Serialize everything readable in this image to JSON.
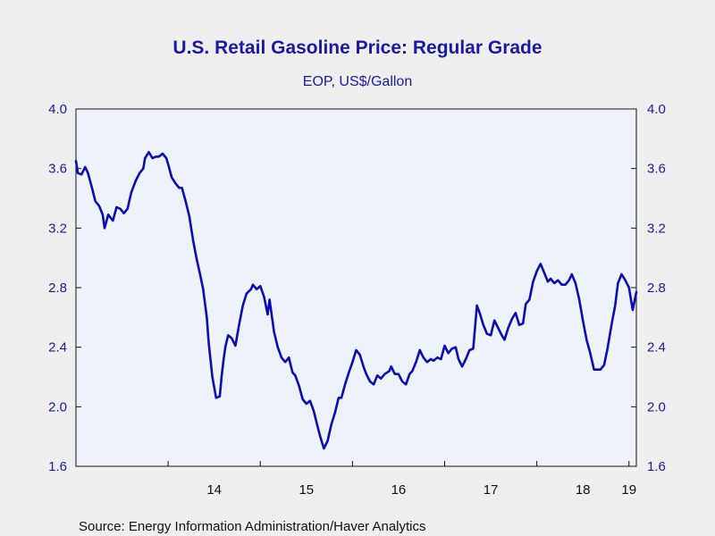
{
  "chart_data": {
    "type": "line",
    "title": "U.S. Retail Gasoline Price: Regular Grade",
    "subtitle": "EOP, US$/Gallon",
    "source": "Source:  Energy Information Administration/Haver Analytics",
    "ylim": [
      1.6,
      4.0
    ],
    "yticks": [
      "4.0",
      "3.6",
      "3.2",
      "2.8",
      "2.4",
      "2.0",
      "1.6"
    ],
    "xlim": [
      2013.0,
      2019.08
    ],
    "x_tick_labels": [
      {
        "label": "14",
        "x": 2014.5
      },
      {
        "label": "15",
        "x": 2015.5
      },
      {
        "label": "16",
        "x": 2016.5
      },
      {
        "label": "17",
        "x": 2017.5
      },
      {
        "label": "18",
        "x": 2018.5
      },
      {
        "label": "19",
        "x": 2019.0
      }
    ],
    "year_boundaries": [
      2014,
      2015,
      2016,
      2017,
      2018,
      2019
    ],
    "grid": false,
    "line_color": "#0c0cb4",
    "plot_background": "#eef3fb",
    "axis_color": "#111111",
    "series": [
      {
        "values": [
          [
            2013.0,
            3.65
          ],
          [
            2013.02,
            3.57
          ],
          [
            2013.06,
            3.56
          ],
          [
            2013.1,
            3.61
          ],
          [
            2013.13,
            3.57
          ],
          [
            2013.17,
            3.48
          ],
          [
            2013.21,
            3.38
          ],
          [
            2013.25,
            3.35
          ],
          [
            2013.29,
            3.29
          ],
          [
            2013.31,
            3.2
          ],
          [
            2013.35,
            3.29
          ],
          [
            2013.4,
            3.25
          ],
          [
            2013.44,
            3.34
          ],
          [
            2013.48,
            3.33
          ],
          [
            2013.52,
            3.3
          ],
          [
            2013.56,
            3.33
          ],
          [
            2013.6,
            3.44
          ],
          [
            2013.65,
            3.52
          ],
          [
            2013.69,
            3.57
          ],
          [
            2013.73,
            3.6
          ],
          [
            2013.75,
            3.67
          ],
          [
            2013.79,
            3.71
          ],
          [
            2013.83,
            3.67
          ],
          [
            2013.87,
            3.68
          ],
          [
            2013.9,
            3.68
          ],
          [
            2013.94,
            3.7
          ],
          [
            2013.98,
            3.67
          ],
          [
            2014.0,
            3.63
          ],
          [
            2014.04,
            3.54
          ],
          [
            2014.08,
            3.5
          ],
          [
            2014.12,
            3.47
          ],
          [
            2014.15,
            3.47
          ],
          [
            2014.19,
            3.38
          ],
          [
            2014.23,
            3.28
          ],
          [
            2014.27,
            3.12
          ],
          [
            2014.31,
            2.99
          ],
          [
            2014.35,
            2.88
          ],
          [
            2014.38,
            2.79
          ],
          [
            2014.42,
            2.6
          ],
          [
            2014.44,
            2.43
          ],
          [
            2014.48,
            2.2
          ],
          [
            2014.52,
            2.06
          ],
          [
            2014.56,
            2.07
          ],
          [
            2014.58,
            2.2
          ],
          [
            2014.6,
            2.31
          ],
          [
            2014.62,
            2.4
          ],
          [
            2014.65,
            2.48
          ],
          [
            2014.69,
            2.46
          ],
          [
            2014.73,
            2.41
          ],
          [
            2014.77,
            2.55
          ],
          [
            2014.81,
            2.68
          ],
          [
            2014.85,
            2.76
          ],
          [
            2014.9,
            2.79
          ],
          [
            2014.92,
            2.82
          ],
          [
            2014.96,
            2.79
          ],
          [
            2015.0,
            2.81
          ],
          [
            2015.04,
            2.74
          ],
          [
            2015.08,
            2.62
          ],
          [
            2015.1,
            2.72
          ],
          [
            2015.15,
            2.5
          ],
          [
            2015.19,
            2.4
          ],
          [
            2015.23,
            2.33
          ],
          [
            2015.27,
            2.3
          ],
          [
            2015.31,
            2.33
          ],
          [
            2015.35,
            2.23
          ],
          [
            2015.38,
            2.21
          ],
          [
            2015.42,
            2.14
          ],
          [
            2015.46,
            2.05
          ],
          [
            2015.5,
            2.02
          ],
          [
            2015.54,
            2.04
          ],
          [
            2015.58,
            1.97
          ],
          [
            2015.62,
            1.87
          ],
          [
            2015.65,
            1.8
          ],
          [
            2015.69,
            1.72
          ],
          [
            2015.73,
            1.77
          ],
          [
            2015.77,
            1.88
          ],
          [
            2015.81,
            1.96
          ],
          [
            2015.85,
            2.06
          ],
          [
            2015.88,
            2.06
          ],
          [
            2015.92,
            2.15
          ],
          [
            2015.96,
            2.23
          ],
          [
            2016.0,
            2.3
          ],
          [
            2016.04,
            2.38
          ],
          [
            2016.08,
            2.35
          ],
          [
            2016.12,
            2.27
          ],
          [
            2016.15,
            2.22
          ],
          [
            2016.19,
            2.17
          ],
          [
            2016.23,
            2.15
          ],
          [
            2016.27,
            2.21
          ],
          [
            2016.31,
            2.19
          ],
          [
            2016.35,
            2.22
          ],
          [
            2016.4,
            2.24
          ],
          [
            2016.42,
            2.27
          ],
          [
            2016.46,
            2.22
          ],
          [
            2016.5,
            2.22
          ],
          [
            2016.54,
            2.17
          ],
          [
            2016.58,
            2.15
          ],
          [
            2016.62,
            2.22
          ],
          [
            2016.65,
            2.24
          ],
          [
            2016.69,
            2.3
          ],
          [
            2016.73,
            2.38
          ],
          [
            2016.77,
            2.33
          ],
          [
            2016.81,
            2.3
          ],
          [
            2016.85,
            2.32
          ],
          [
            2016.88,
            2.31
          ],
          [
            2016.92,
            2.33
          ],
          [
            2016.96,
            2.32
          ],
          [
            2017.0,
            2.41
          ],
          [
            2017.04,
            2.36
          ],
          [
            2017.08,
            2.39
          ],
          [
            2017.12,
            2.4
          ],
          [
            2017.15,
            2.32
          ],
          [
            2017.19,
            2.27
          ],
          [
            2017.23,
            2.32
          ],
          [
            2017.27,
            2.38
          ],
          [
            2017.31,
            2.39
          ],
          [
            2017.35,
            2.68
          ],
          [
            2017.38,
            2.63
          ],
          [
            2017.42,
            2.55
          ],
          [
            2017.46,
            2.49
          ],
          [
            2017.5,
            2.48
          ],
          [
            2017.54,
            2.58
          ],
          [
            2017.58,
            2.53
          ],
          [
            2017.62,
            2.48
          ],
          [
            2017.65,
            2.45
          ],
          [
            2017.69,
            2.53
          ],
          [
            2017.73,
            2.59
          ],
          [
            2017.77,
            2.63
          ],
          [
            2017.81,
            2.55
          ],
          [
            2017.85,
            2.56
          ],
          [
            2017.88,
            2.69
          ],
          [
            2017.92,
            2.72
          ],
          [
            2017.96,
            2.84
          ],
          [
            2018.0,
            2.91
          ],
          [
            2018.04,
            2.96
          ],
          [
            2018.08,
            2.9
          ],
          [
            2018.12,
            2.84
          ],
          [
            2018.15,
            2.86
          ],
          [
            2018.19,
            2.83
          ],
          [
            2018.23,
            2.85
          ],
          [
            2018.27,
            2.82
          ],
          [
            2018.31,
            2.82
          ],
          [
            2018.35,
            2.85
          ],
          [
            2018.38,
            2.89
          ],
          [
            2018.42,
            2.83
          ],
          [
            2018.46,
            2.72
          ],
          [
            2018.5,
            2.58
          ],
          [
            2018.54,
            2.45
          ],
          [
            2018.58,
            2.36
          ],
          [
            2018.62,
            2.25
          ],
          [
            2018.65,
            2.25
          ],
          [
            2018.69,
            2.25
          ],
          [
            2018.73,
            2.28
          ],
          [
            2018.77,
            2.4
          ],
          [
            2018.81,
            2.55
          ],
          [
            2018.85,
            2.68
          ],
          [
            2018.88,
            2.83
          ],
          [
            2018.92,
            2.89
          ],
          [
            2018.96,
            2.85
          ],
          [
            2019.0,
            2.8
          ],
          [
            2019.04,
            2.65
          ],
          [
            2019.08,
            2.77
          ]
        ]
      }
    ]
  }
}
